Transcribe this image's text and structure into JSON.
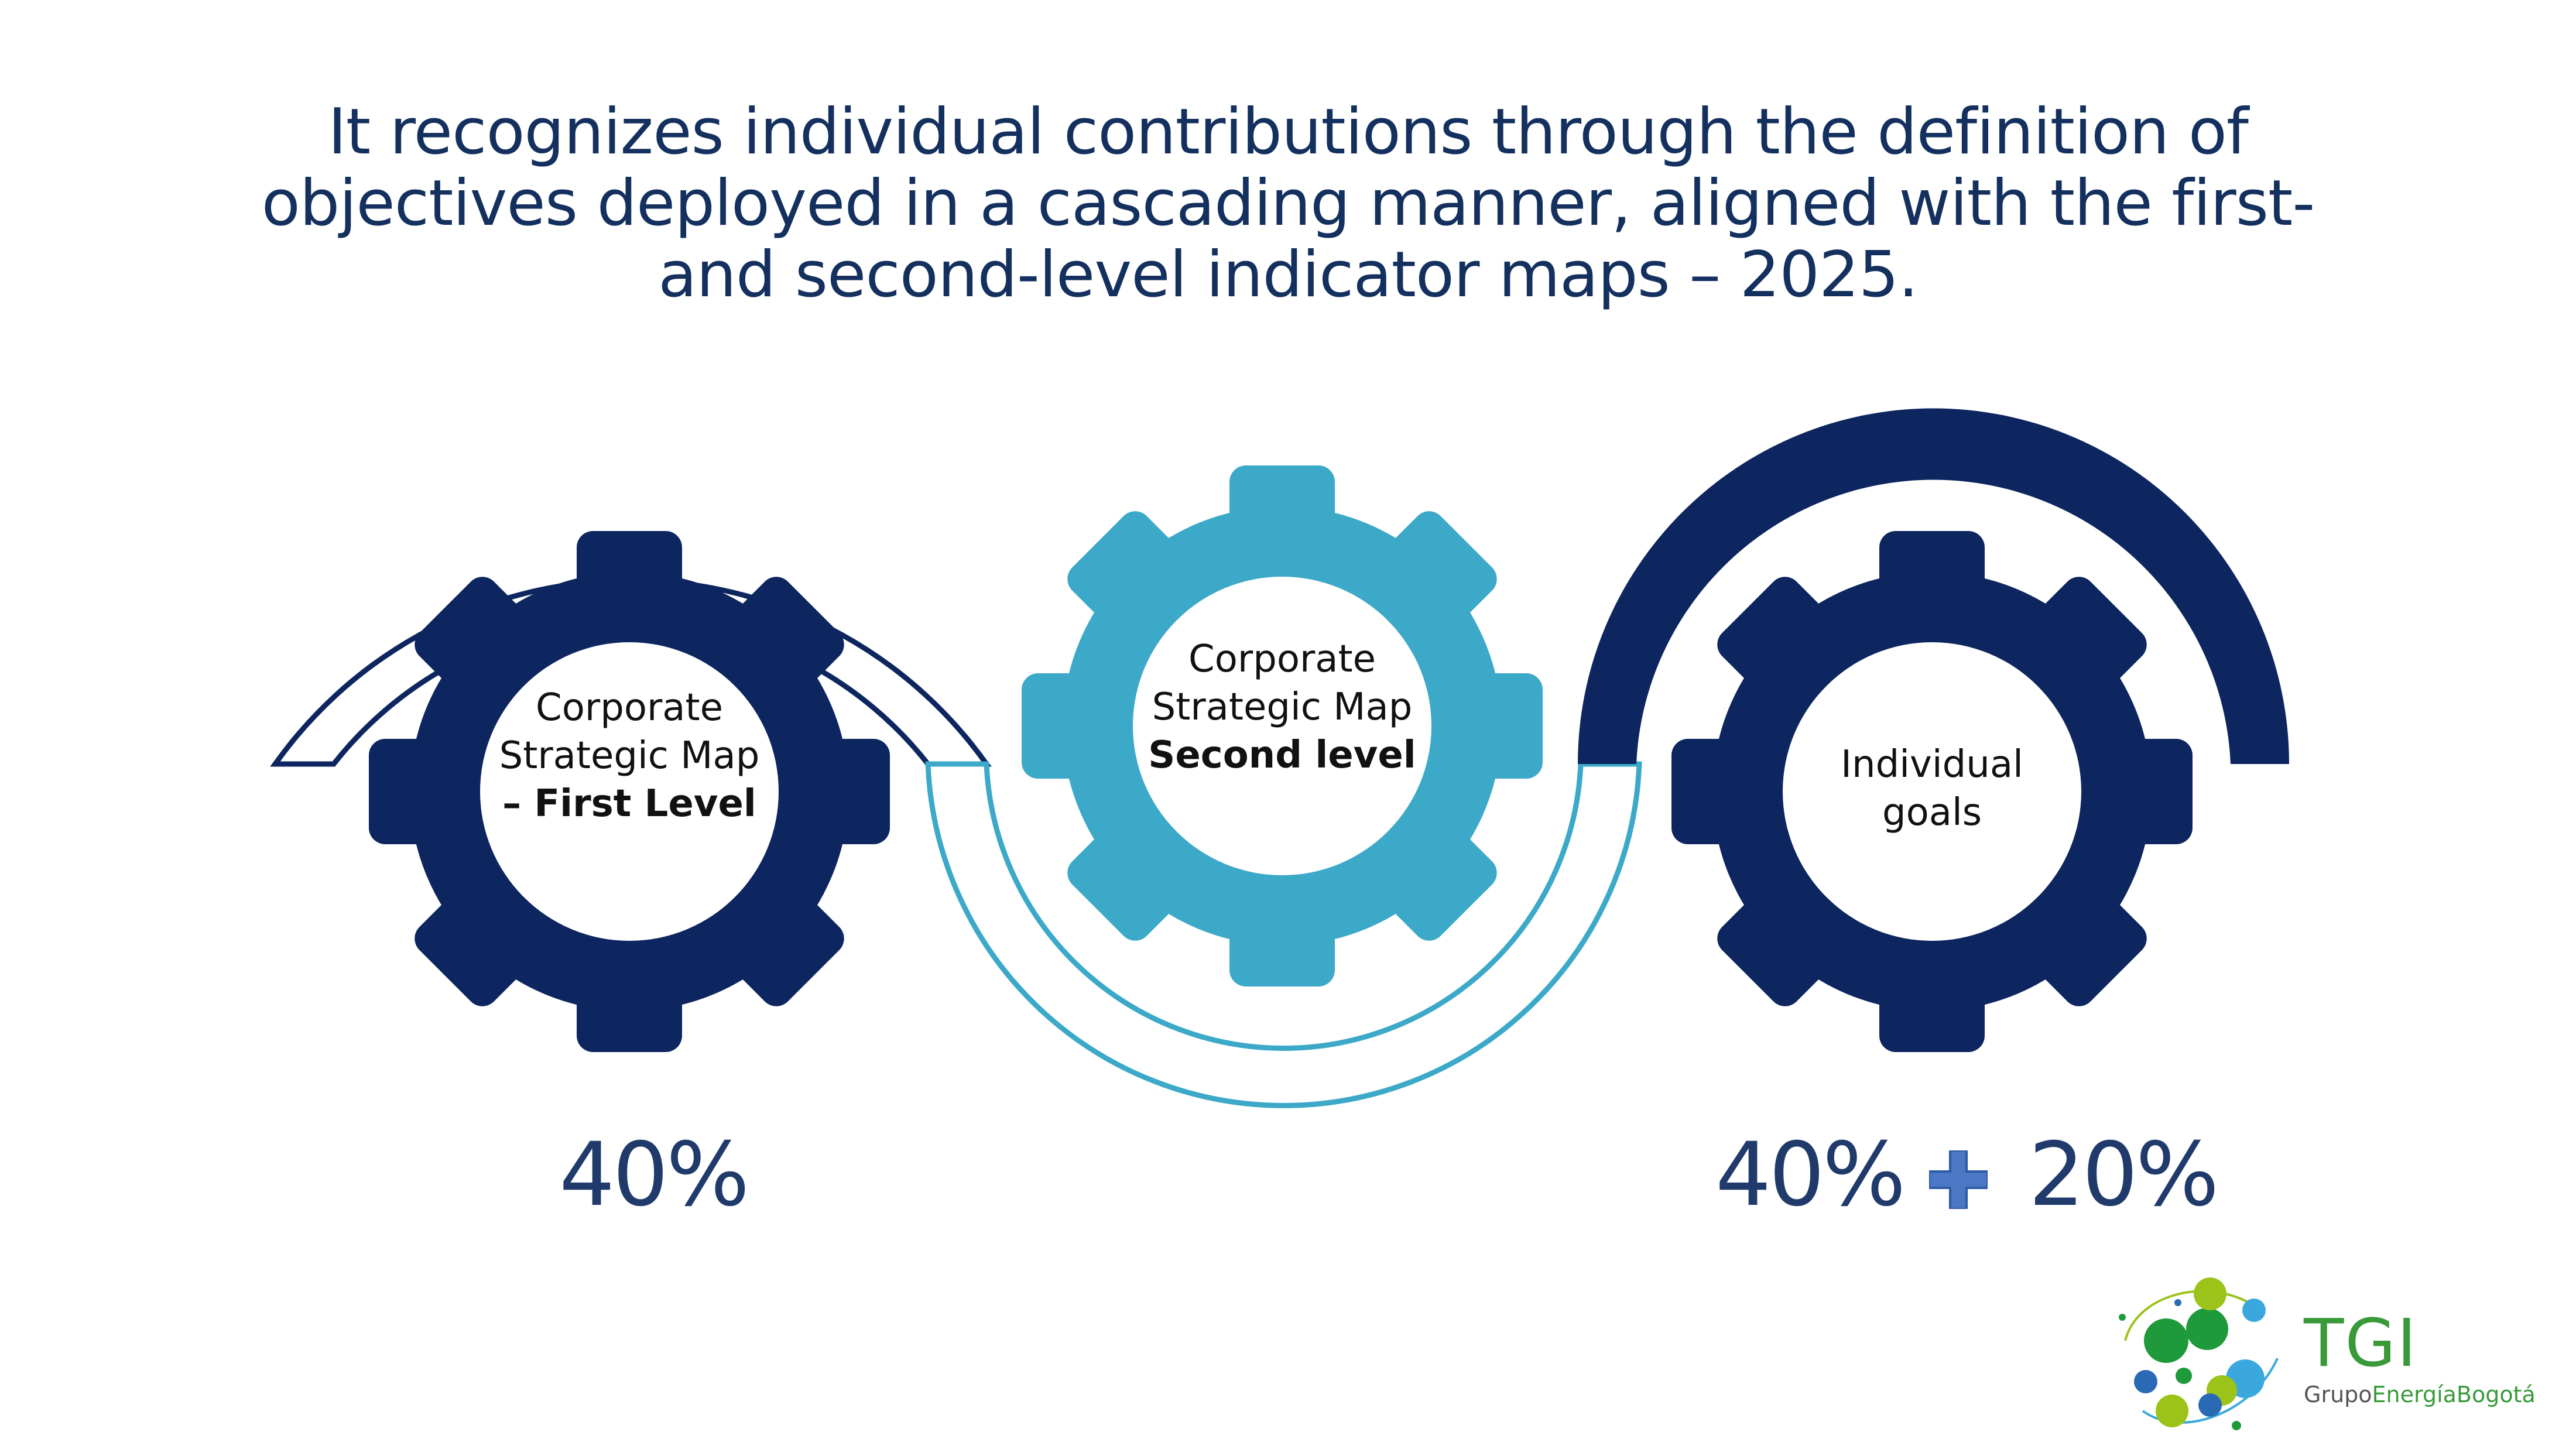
{
  "title_lines": [
    "It recognizes individual contributions through the definition of",
    "objectives deployed in a cascading manner, aligned with the first-",
    "and second-level indicator maps – 2025."
  ],
  "gears": [
    {
      "line1": "Corporate",
      "line2": "Strategic Map",
      "bold": "– First Level",
      "color": "#0d2660"
    },
    {
      "line1": "Corporate",
      "line2": "Strategic Map",
      "bold": "Second level",
      "color": "#3da9c9"
    },
    {
      "line1": "Individual",
      "line2": "goals",
      "color": "#0d2660"
    }
  ],
  "percentages": {
    "left": "40%",
    "right_a": "40%",
    "right_b": "20%"
  },
  "logo": {
    "brand": "TGI",
    "sub_part1": "Grupo",
    "sub_part2": "EnergíaBogotá"
  },
  "colors": {
    "navy": "#0d2660",
    "teal": "#3da9c9",
    "plus": "#4a78c4",
    "title": "#14305f"
  }
}
